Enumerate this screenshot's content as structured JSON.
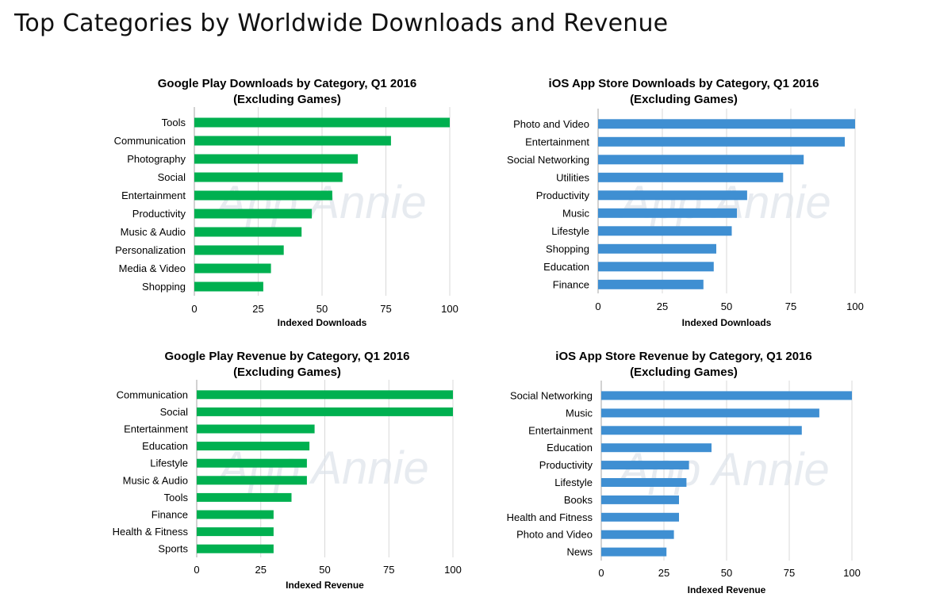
{
  "page": {
    "title": "Top Categories by Worldwide Downloads and Revenue"
  },
  "colors": {
    "google_play": "#00b050",
    "ios": "#3f8fd2",
    "grid": "#d9d9d9",
    "axis": "#a6a6a6"
  },
  "watermark": "App Annie",
  "chart_data": [
    {
      "id": "gp-downloads",
      "type": "bar",
      "orientation": "horizontal",
      "title": "Google Play Downloads by Category, Q1 2016",
      "subtitle": "(Excluding Games)",
      "xlabel": "Indexed Downloads",
      "xlim": [
        0,
        100
      ],
      "xticks": [
        0,
        25,
        50,
        75,
        100
      ],
      "grid": true,
      "color": "#00b050",
      "categories": [
        "Tools",
        "Communication",
        "Photography",
        "Social",
        "Entertainment",
        "Productivity",
        "Music & Audio",
        "Personalization",
        "Media & Video",
        "Shopping"
      ],
      "values": [
        100,
        77,
        64,
        58,
        54,
        46,
        42,
        35,
        30,
        27
      ]
    },
    {
      "id": "ios-downloads",
      "type": "bar",
      "orientation": "horizontal",
      "title": "iOS App Store Downloads by Category, Q1 2016",
      "subtitle": "(Excluding Games)",
      "xlabel": "Indexed Downloads",
      "xlim": [
        0,
        100
      ],
      "xticks": [
        0,
        25,
        50,
        75,
        100
      ],
      "grid": true,
      "color": "#3f8fd2",
      "categories": [
        "Photo and Video",
        "Entertainment",
        "Social Networking",
        "Utilities",
        "Productivity",
        "Music",
        "Lifestyle",
        "Shopping",
        "Education",
        "Finance"
      ],
      "values": [
        100,
        96,
        80,
        72,
        58,
        54,
        52,
        46,
        45,
        41
      ]
    },
    {
      "id": "gp-revenue",
      "type": "bar",
      "orientation": "horizontal",
      "title": "Google Play Revenue by Category, Q1 2016",
      "subtitle": "(Excluding Games)",
      "xlabel": "Indexed Revenue",
      "xlim": [
        0,
        100
      ],
      "xticks": [
        0,
        25,
        50,
        75,
        100
      ],
      "grid": true,
      "color": "#00b050",
      "categories": [
        "Communication",
        "Social",
        "Entertainment",
        "Education",
        "Lifestyle",
        "Music & Audio",
        "Tools",
        "Finance",
        "Health & Fitness",
        "Sports"
      ],
      "values": [
        100,
        100,
        46,
        44,
        43,
        43,
        37,
        30,
        30,
        30
      ]
    },
    {
      "id": "ios-revenue",
      "type": "bar",
      "orientation": "horizontal",
      "title": "iOS App Store Revenue by Category, Q1 2016",
      "subtitle": "(Excluding Games)",
      "xlabel": "Indexed Revenue",
      "xlim": [
        0,
        100
      ],
      "xticks": [
        0,
        25,
        50,
        75,
        100
      ],
      "grid": true,
      "color": "#3f8fd2",
      "categories": [
        "Social Networking",
        "Music",
        "Entertainment",
        "Education",
        "Productivity",
        "Lifestyle",
        "Books",
        "Health and Fitness",
        "Photo and Video",
        "News"
      ],
      "values": [
        100,
        87,
        80,
        44,
        35,
        34,
        31,
        31,
        29,
        26
      ]
    }
  ]
}
